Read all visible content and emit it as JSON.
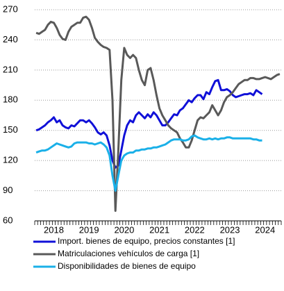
{
  "chart_data": {
    "type": "line",
    "categories": [
      null,
      null,
      null,
      null,
      null,
      null,
      "2018",
      null,
      null,
      null,
      null,
      null,
      null,
      null,
      null,
      null,
      null,
      null,
      "2019",
      null,
      null,
      null,
      null,
      null,
      null,
      null,
      null,
      null,
      null,
      null,
      "2020",
      null,
      null,
      null,
      null,
      null,
      null,
      null,
      null,
      null,
      null,
      null,
      "2021",
      null,
      null,
      null,
      null,
      null,
      null,
      null,
      null,
      null,
      null,
      null,
      "2022",
      null,
      null,
      null,
      null,
      null,
      null,
      null,
      null,
      null,
      null,
      null,
      "2023",
      null,
      null,
      null,
      null,
      null,
      null,
      null,
      null,
      null,
      null,
      null,
      "2024",
      null,
      null,
      null,
      null,
      null
    ],
    "series": [
      {
        "name": "Import. bienes de equipo, precios constantes [1]",
        "color": "#1010d8",
        "values": [
          150,
          151,
          153,
          155,
          158,
          160,
          163,
          158,
          160,
          155,
          153,
          152,
          155,
          154,
          157,
          160,
          160,
          158,
          160,
          157,
          153,
          148,
          146,
          148,
          145,
          135,
          120,
          113,
          115,
          130,
          145,
          155,
          160,
          158,
          165,
          168,
          165,
          162,
          166,
          163,
          168,
          165,
          160,
          155,
          155,
          158,
          162,
          166,
          165,
          170,
          172,
          176,
          180,
          178,
          182,
          185,
          185,
          181,
          188,
          186,
          193,
          199,
          200,
          190,
          190,
          191,
          189,
          185,
          183,
          184,
          185,
          186,
          186,
          187,
          185,
          190,
          188,
          186,
          null,
          null,
          null,
          null,
          null,
          null
        ]
      },
      {
        "name": "Matriculaciones vehículos de carga [1]",
        "color": "#595959",
        "values": [
          247,
          246,
          248,
          250,
          255,
          258,
          257,
          252,
          245,
          241,
          240,
          248,
          253,
          255,
          257,
          257,
          262,
          263,
          260,
          252,
          242,
          238,
          235,
          233,
          232,
          230,
          180,
          70,
          130,
          200,
          232,
          225,
          222,
          225,
          222,
          210,
          200,
          195,
          210,
          212,
          200,
          185,
          172,
          165,
          160,
          155,
          152,
          150,
          148,
          142,
          138,
          133,
          133,
          140,
          150,
          160,
          163,
          162,
          165,
          168,
          175,
          170,
          165,
          170,
          178,
          183,
          185,
          188,
          192,
          196,
          198,
          200,
          200,
          202,
          202,
          201,
          201,
          202,
          203,
          202,
          201,
          203,
          205,
          206
        ]
      },
      {
        "name": "Disponibilidades de bienes de equipo",
        "color": "#1ab0e8",
        "values": [
          128,
          129,
          130,
          130,
          131,
          133,
          135,
          137,
          136,
          135,
          134,
          133,
          134,
          137,
          138,
          138,
          138,
          138,
          137,
          137,
          136,
          137,
          138,
          136,
          133,
          125,
          105,
          90,
          105,
          120,
          125,
          127,
          128,
          128,
          130,
          130,
          131,
          131,
          132,
          132,
          133,
          133,
          134,
          135,
          136,
          138,
          140,
          141,
          141,
          141,
          140,
          140,
          141,
          144,
          145,
          143,
          142,
          141,
          141,
          142,
          141,
          142,
          141,
          142,
          142,
          143,
          143,
          142,
          142,
          142,
          142,
          142,
          142,
          142,
          141,
          141,
          140,
          140,
          null,
          null,
          null,
          null,
          null,
          null
        ]
      }
    ],
    "ylim": [
      60,
      270
    ],
    "yticks": [
      60,
      90,
      120,
      150,
      180,
      210,
      240,
      270
    ],
    "grid": true,
    "legend": "bottom"
  }
}
